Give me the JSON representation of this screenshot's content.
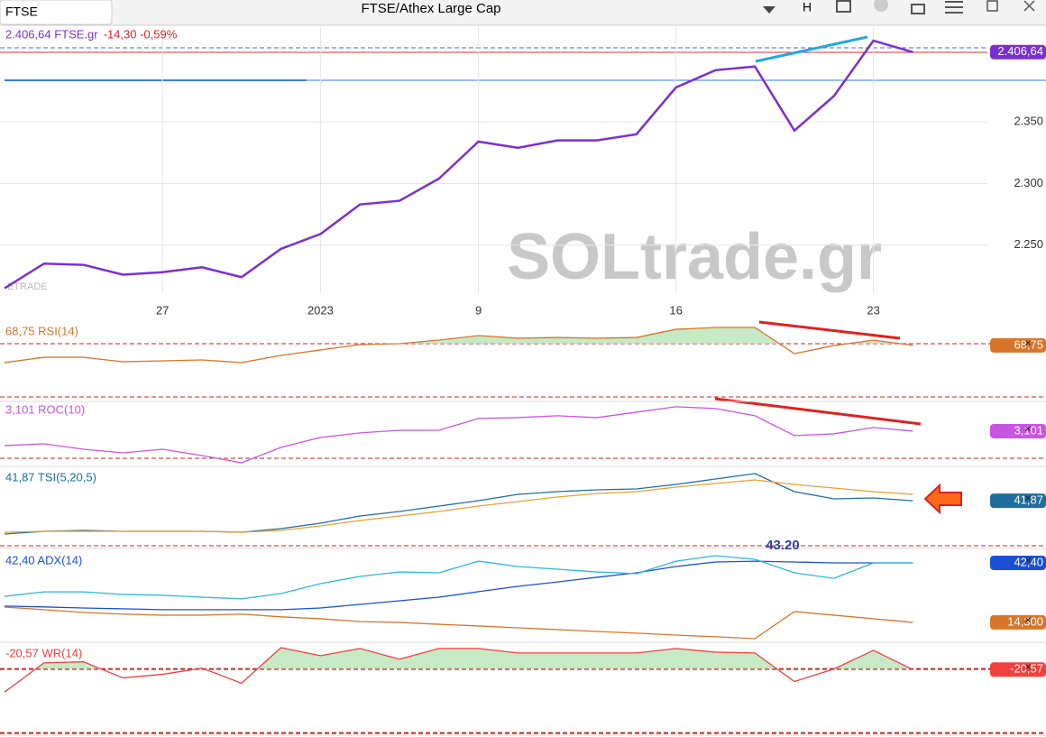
{
  "window": {
    "symbol": "FTSE",
    "title": "FTSE/Athex Large Cap",
    "button": "H"
  },
  "watermark": "SOLtrade.gr",
  "logo": "ETRADE",
  "chart_data": [
    {
      "type": "line",
      "title": "2.406,64 FTSE.gr",
      "change": "-14,30 -0,59%",
      "categories": [
        null,
        null,
        null,
        null,
        "27",
        null,
        null,
        null,
        "2023",
        null,
        null,
        null,
        "9",
        null,
        null,
        null,
        null,
        "16",
        null,
        null,
        null,
        null,
        "23",
        null
      ],
      "series": [
        {
          "color": "#7b2fd0",
          "values": [
            2215,
            2235,
            2234,
            2226,
            2228,
            2232,
            2224,
            2247,
            2259,
            2283,
            2286,
            2304,
            2334,
            2329,
            2335,
            2335,
            2340,
            2378,
            2392,
            2395,
            2343,
            2371,
            2416,
            2406.64
          ],
          "last_label": "2.406,64"
        }
      ],
      "ylim": [
        2211,
        2427
      ],
      "yticks": [
        {
          "value": 2250,
          "label": "2.250"
        },
        {
          "value": 2300,
          "label": "2.300"
        },
        {
          "value": 2350,
          "label": "2.350"
        }
      ],
      "grid": true
    },
    {
      "type": "line",
      "title": "68,75 RSI(14)",
      "levels": [
        70,
        30
      ],
      "fill_above": 70,
      "series": [
        {
          "color": "#d9752a",
          "values": [
            55.8,
            59.8,
            59.8,
            56.4,
            57.1,
            57.8,
            55.8,
            61.2,
            65.3,
            69.3,
            70,
            72.7,
            76.1,
            74.1,
            74.7,
            74.1,
            74.7,
            80.8,
            82.2,
            82.2,
            62.5,
            68.6,
            72.7,
            68.75
          ],
          "last_label": "68,75"
        }
      ],
      "ylim": [
        26.6,
        85.6
      ]
    },
    {
      "type": "line",
      "title": "3,101 ROC(10)",
      "levels": [
        0
      ],
      "series": [
        {
          "color": "#c855e0",
          "values": [
            1.45,
            1.65,
            1.03,
            0.62,
            1.03,
            0.31,
            -0.52,
            1.24,
            2.38,
            2.9,
            3.2,
            3.2,
            4.55,
            4.65,
            4.86,
            4.65,
            5.27,
            5.89,
            5.69,
            4.86,
            2.59,
            2.79,
            3.52,
            3.101
          ],
          "last_label": "3,101"
        }
      ],
      "ylim": [
        -0.93,
        6.5
      ]
    },
    {
      "type": "line",
      "title": "41,87 TSI(5,20,5)",
      "series": [
        {
          "color": "#1f6e9e",
          "values": [
            5,
            8,
            9,
            8,
            8,
            8,
            7,
            11,
            17,
            25,
            30,
            36,
            42,
            49,
            52,
            54,
            55,
            60,
            66,
            72,
            52,
            44,
            45,
            41.87
          ],
          "last_label": "41,87"
        },
        {
          "color": "#e8a030",
          "values": [
            7,
            8,
            8,
            8,
            8,
            8,
            7,
            9,
            14,
            20,
            25,
            30,
            36,
            41,
            46,
            50,
            52,
            57,
            61,
            65,
            60,
            56,
            52,
            49
          ]
        }
      ],
      "ylim": [
        -11,
        77
      ]
    },
    {
      "type": "line",
      "title": "42,40 ADX(14)",
      "annotation": "43.20",
      "series": [
        {
          "color": "#1a4fd6",
          "values": [
            22,
            21.6,
            21.1,
            20.7,
            20.3,
            20.3,
            20.3,
            20.3,
            21.1,
            22.8,
            24.5,
            26.2,
            28.8,
            31.3,
            33.4,
            35.6,
            37.7,
            40.7,
            42.8,
            43.2,
            42.8,
            42.4,
            42.4,
            42.4
          ],
          "last_label": "42,40"
        },
        {
          "color": "#2bb5e0",
          "values": [
            26.6,
            28.7,
            28.7,
            27.5,
            27.1,
            26.2,
            25.4,
            27.9,
            32.6,
            36,
            38.1,
            37.7,
            43.2,
            40.7,
            39.4,
            38.1,
            37.3,
            43.2,
            45.8,
            44.1,
            37.7,
            35.1,
            42.4,
            42.4
          ]
        },
        {
          "color": "#d9752a",
          "values": [
            21.5,
            20.3,
            19,
            18.2,
            17.7,
            17.7,
            18.2,
            16.9,
            16,
            14.7,
            14.3,
            13.4,
            12.6,
            11.7,
            10.9,
            10,
            9.2,
            8.3,
            7.5,
            6.6,
            19.4,
            17.7,
            16,
            14.3
          ],
          "last_label": "14,300"
        }
      ],
      "ylim": [
        4.9,
        47.5
      ]
    },
    {
      "type": "line",
      "title": "-20,57 WR(14)",
      "levels": [
        -20,
        -80
      ],
      "fill_above": -20,
      "series": [
        {
          "color": "#f04040",
          "values": [
            -41.7,
            -14.2,
            -13.3,
            -28.3,
            -25,
            -19.2,
            -33.3,
            0,
            -7.5,
            -0.8,
            -10.8,
            -0.8,
            -0.8,
            -5,
            -5,
            -5,
            -5,
            -0.8,
            -4.2,
            -5,
            -31.7,
            -20,
            -2.5,
            -20.57
          ],
          "last_label": "-20,57"
        }
      ],
      "ylim": [
        -82,
        2.5
      ]
    }
  ]
}
